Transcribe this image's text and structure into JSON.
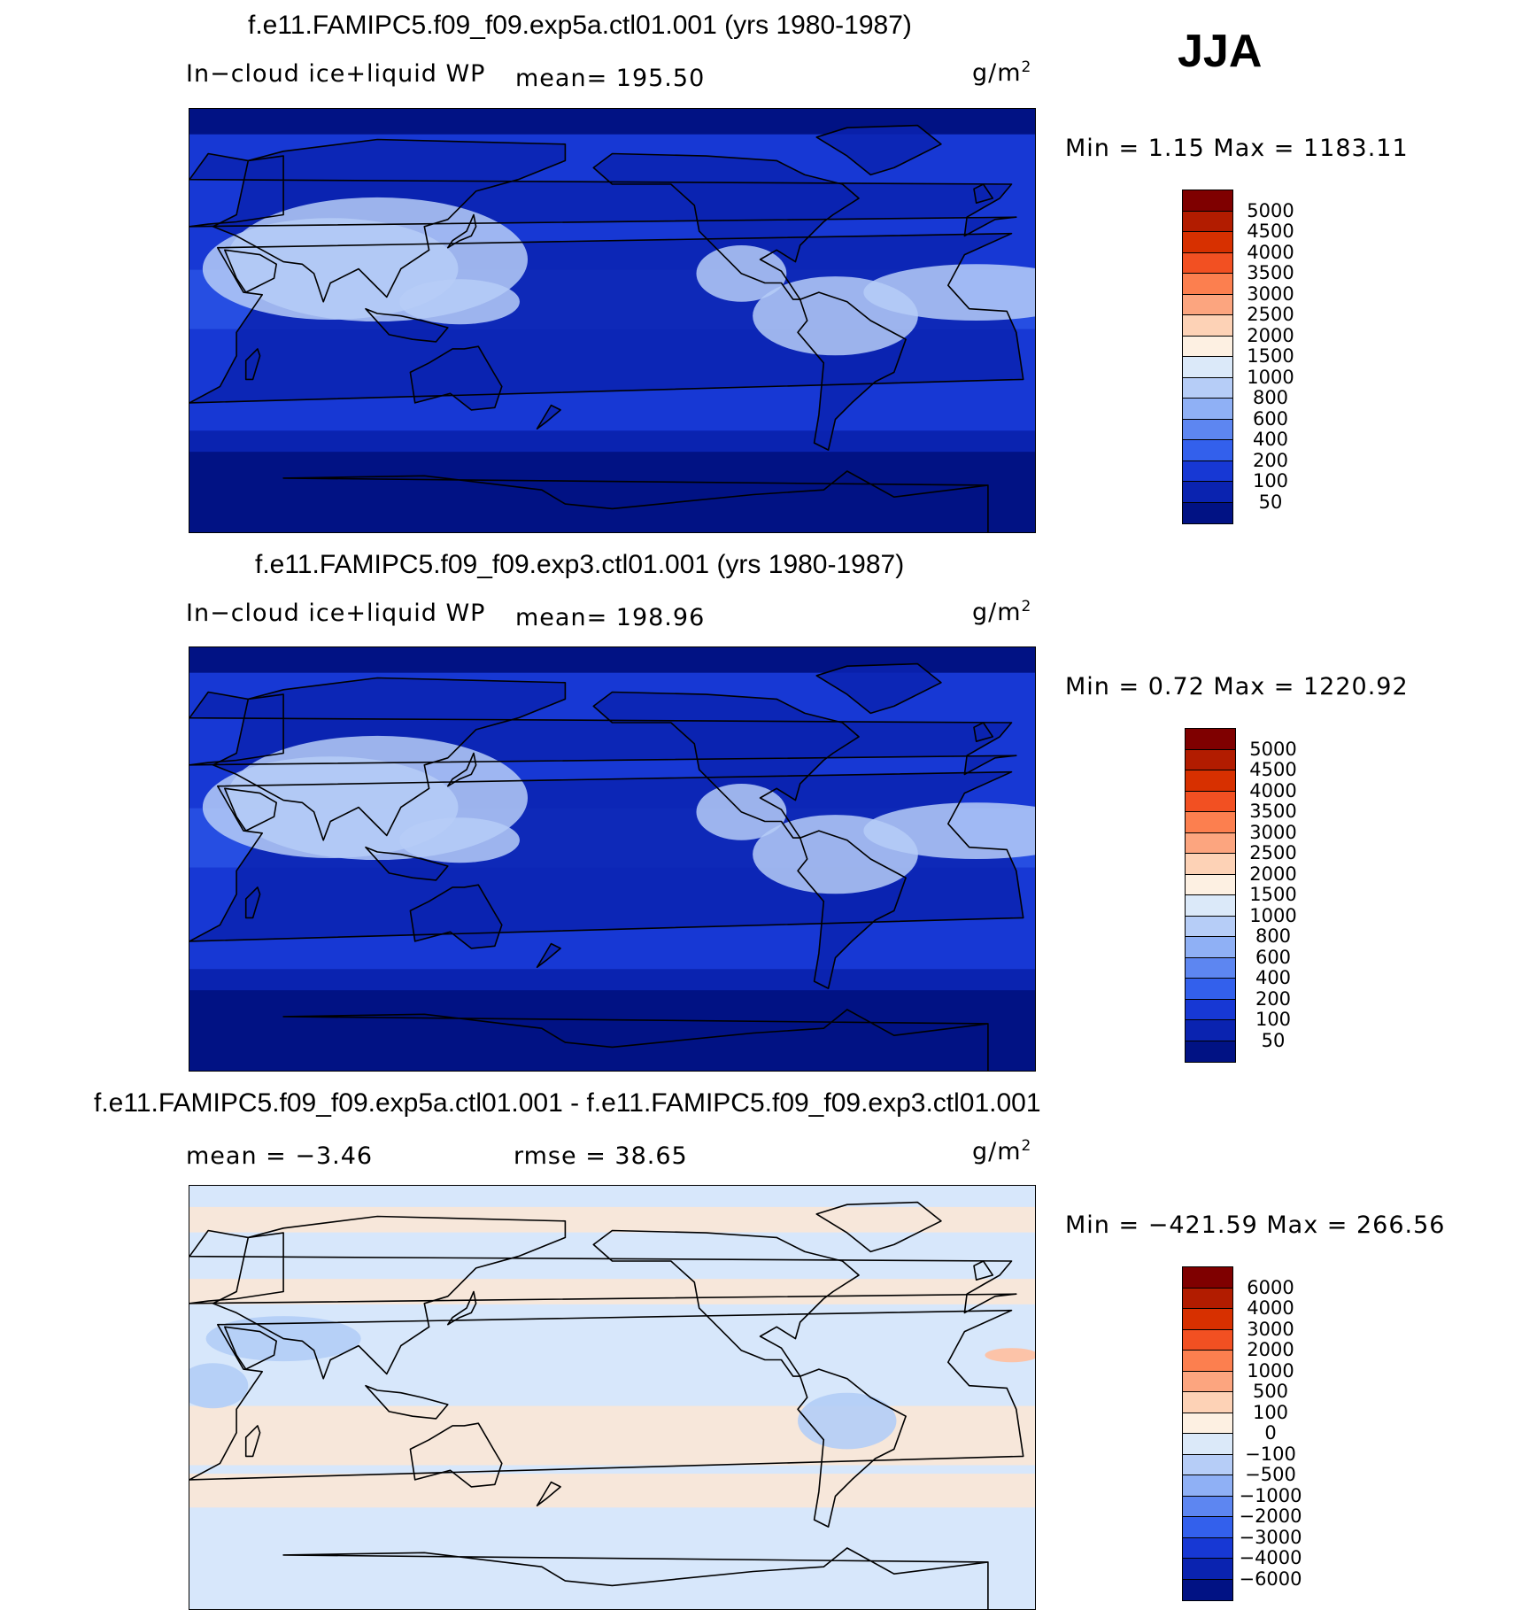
{
  "season": "JJA",
  "panels": [
    {
      "title": "f.e11.FAMIPC5.f09_f09.exp5a.ctl01.001 (yrs 1980-1987)",
      "left_label": "In−cloud ice+liquid WP",
      "center_label": "mean=  195.50",
      "units": "g/m",
      "units_sup": "2",
      "minmax": "Min  =    1.15  Max  =  1183.11",
      "colorbar": {
        "ticks": [
          "5000",
          "4500",
          "4000",
          "3500",
          "3000",
          "2500",
          "2000",
          "1500",
          "1000",
          "800",
          "600",
          "400",
          "200",
          "100",
          "50"
        ],
        "colors": [
          "#7f0000",
          "#b21c00",
          "#d73000",
          "#f25022",
          "#fc7f4f",
          "#fca57f",
          "#fdd2b6",
          "#fdf0e2",
          "#dbe9f9",
          "#b6cdf7",
          "#8fb0f5",
          "#5d86f1",
          "#3360ec",
          "#1738d4",
          "#0a23b0",
          "#011284"
        ]
      },
      "map_palette": [
        "#011284",
        "#0a23b0",
        "#1738d4",
        "#3360ec",
        "#5d86f1",
        "#8fb0f5",
        "#b6cdf7",
        "#dbe9f9"
      ]
    },
    {
      "title": "f.e11.FAMIPC5.f09_f09.exp3.ctl01.001 (yrs 1980-1987)",
      "left_label": "In−cloud ice+liquid WP",
      "center_label": "mean=  198.96",
      "units": "g/m",
      "units_sup": "2",
      "minmax": "Min  =    0.72  Max  =  1220.92",
      "colorbar": {
        "ticks": [
          "5000",
          "4500",
          "4000",
          "3500",
          "3000",
          "2500",
          "2000",
          "1500",
          "1000",
          "800",
          "600",
          "400",
          "200",
          "100",
          "50"
        ],
        "colors": [
          "#7f0000",
          "#b21c00",
          "#d73000",
          "#f25022",
          "#fc7f4f",
          "#fca57f",
          "#fdd2b6",
          "#fdf0e2",
          "#dbe9f9",
          "#b6cdf7",
          "#8fb0f5",
          "#5d86f1",
          "#3360ec",
          "#1738d4",
          "#0a23b0",
          "#011284"
        ]
      },
      "map_palette": [
        "#011284",
        "#0a23b0",
        "#1738d4",
        "#3360ec",
        "#5d86f1",
        "#8fb0f5",
        "#b6cdf7",
        "#dbe9f9"
      ]
    },
    {
      "title": "f.e11.FAMIPC5.f09_f09.exp5a.ctl01.001 - f.e11.FAMIPC5.f09_f09.exp3.ctl01.001",
      "left_label": "mean  =   −3.46",
      "center_label": "rmse  =    38.65",
      "units": "g/m",
      "units_sup": "2",
      "minmax": "Min  =  −421.59  Max  =  266.56",
      "colorbar": {
        "ticks": [
          "6000",
          "4000",
          "3000",
          "2000",
          "1000",
          "500",
          "100",
          "0",
          "−100",
          "−500",
          "−1000",
          "−2000",
          "−3000",
          "−4000",
          "−6000"
        ],
        "colors": [
          "#7f0000",
          "#b21c00",
          "#d73000",
          "#f25022",
          "#fc7f4f",
          "#fca57f",
          "#fdd2b6",
          "#fdf0e2",
          "#dbe9f9",
          "#b6cdf7",
          "#8fb0f5",
          "#5d86f1",
          "#3360ec",
          "#1738d4",
          "#0a23b0",
          "#011284"
        ]
      },
      "map_palette": [
        "#fde6d4",
        "#d7e7fb",
        "#b3cdf6",
        "#8fb0f5",
        "#fcc3a8"
      ]
    }
  ]
}
